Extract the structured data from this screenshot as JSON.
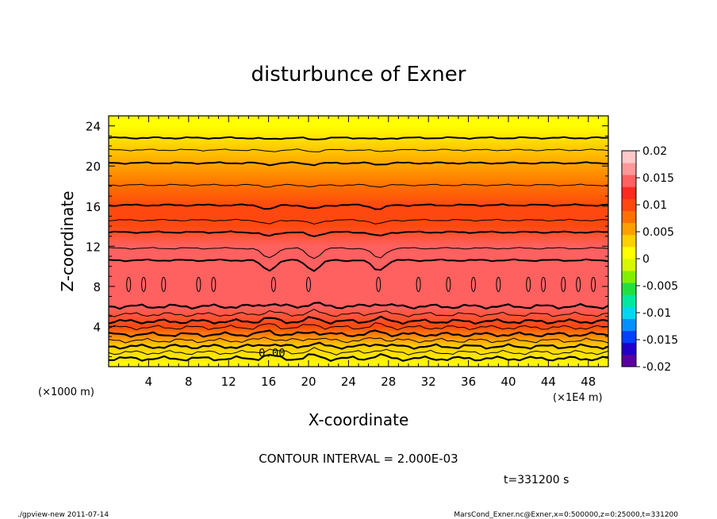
{
  "chart_data": {
    "type": "heatmap",
    "title": "disturbunce of Exner",
    "xlabel": "X-coordinate",
    "ylabel": "Z-coordinate",
    "x_unit_label": "(×1E4 m)",
    "y_unit_label": "(×1000 m)",
    "xlim": [
      0,
      50
    ],
    "ylim": [
      0,
      25
    ],
    "x_ticks": [
      "4",
      "8",
      "12",
      "16",
      "20",
      "24",
      "28",
      "32",
      "36",
      "40",
      "44",
      "48"
    ],
    "y_ticks": [
      "4",
      "8",
      "12",
      "16",
      "20",
      "24"
    ],
    "colorbar": {
      "ticks": [
        "0.02",
        "0.015",
        "0.01",
        "0.005",
        "0",
        "-0.005",
        "-0.01",
        "-0.015",
        "-0.02"
      ],
      "range": [
        -0.02,
        0.02
      ],
      "colors": [
        "#5a00a0",
        "#2000c8",
        "#0040ff",
        "#0090ff",
        "#00d8f0",
        "#00e8a0",
        "#20e040",
        "#80f000",
        "#d8f800",
        "#ffff00",
        "#ffd000",
        "#ffa000",
        "#ff7000",
        "#ff4810",
        "#ff2a20",
        "#ff6060",
        "#ff9898",
        "#ffc8c8"
      ]
    },
    "vertical_profile": {
      "z": [
        0,
        2,
        4,
        6,
        8,
        10,
        12,
        14,
        16,
        18,
        20,
        22,
        24,
        25
      ],
      "value": [
        0.0,
        0.004,
        0.01,
        0.0145,
        0.0155,
        0.015,
        0.014,
        0.011,
        0.0095,
        0.0075,
        0.006,
        0.004,
        0.002,
        0.0015
      ]
    },
    "contour_levels_z": [
      22.8,
      21.6,
      20.3,
      18.1,
      16.1,
      14.6,
      13.4,
      11.8,
      10.6
    ],
    "low_contour_levels_z": [
      6.0,
      5.2,
      4.5,
      3.9,
      3.2,
      2.6,
      2.0,
      1.4,
      0.8
    ],
    "contour_label": "0.00",
    "contour_label_pos": [
      15.0,
      1.0
    ],
    "interval_text": "CONTOUR INTERVAL = 2.000E-03",
    "time_text": "t=331200 s"
  },
  "footer": {
    "left": "./gpview-new   2011-07-14",
    "right": "MarsCond_Exner.nc@Exner,x=0:500000,z=0:25000,t=331200"
  }
}
